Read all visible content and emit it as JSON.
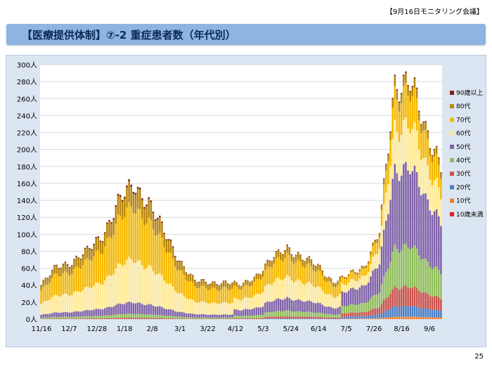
{
  "header": {
    "meeting_tag": "【9月16日モニタリング会議】",
    "title": "【医療提供体制】⑦-2 重症患者数（年代別）",
    "page_number": "25"
  },
  "chart_data": {
    "type": "bar",
    "stacked": true,
    "title": "",
    "xlabel": "",
    "ylabel": "",
    "ylim": [
      0,
      300
    ],
    "y_ticks": [
      "0人",
      "20人",
      "40人",
      "60人",
      "80人",
      "100人",
      "120人",
      "140人",
      "160人",
      "180人",
      "200人",
      "220人",
      "240人",
      "260人",
      "280人",
      "300人"
    ],
    "x_tick_labels": [
      "11/16",
      "12/7",
      "12/28",
      "1/18",
      "2/8",
      "3/1",
      "3/22",
      "4/12",
      "5/3",
      "5/24",
      "6/14",
      "7/5",
      "7/26",
      "8/16",
      "9/6"
    ],
    "grid": true,
    "legend_position": "right",
    "series": [
      {
        "name": "90歳以上",
        "color": "#7b2418"
      },
      {
        "name": "80代",
        "color": "#b8860b"
      },
      {
        "name": "70代",
        "color": "#f5b800"
      },
      {
        "name": "60代",
        "color": "#fde99a"
      },
      {
        "name": "50代",
        "color": "#7f62a8"
      },
      {
        "name": "40代",
        "color": "#8fbd5a"
      },
      {
        "name": "30代",
        "color": "#c9504b"
      },
      {
        "name": "20代",
        "color": "#4a7cc3"
      },
      {
        "name": "10代",
        "color": "#f07c20"
      },
      {
        "name": "10歳未満",
        "color": "#e0201c"
      }
    ],
    "weekly_totals": [
      40,
      62,
      68,
      80,
      100,
      138,
      158,
      140,
      102,
      70,
      45,
      43,
      44,
      40,
      52,
      70,
      84,
      72,
      62,
      44,
      52,
      62,
      105,
      272,
      292,
      215,
      188
    ],
    "weekly_composition": [
      [
        0.015,
        0.15,
        0.39,
        0.32,
        0.085,
        0.03,
        0.01,
        0.0,
        0.0,
        0.0
      ],
      [
        0.015,
        0.15,
        0.39,
        0.32,
        0.085,
        0.03,
        0.01,
        0.0,
        0.0,
        0.0
      ],
      [
        0.015,
        0.15,
        0.39,
        0.32,
        0.085,
        0.03,
        0.01,
        0.0,
        0.0,
        0.0
      ],
      [
        0.015,
        0.15,
        0.39,
        0.32,
        0.085,
        0.03,
        0.01,
        0.0,
        0.0,
        0.0
      ],
      [
        0.015,
        0.15,
        0.39,
        0.32,
        0.085,
        0.03,
        0.01,
        0.0,
        0.0,
        0.0
      ],
      [
        0.015,
        0.15,
        0.39,
        0.32,
        0.085,
        0.03,
        0.01,
        0.0,
        0.0,
        0.0
      ],
      [
        0.015,
        0.15,
        0.39,
        0.32,
        0.085,
        0.03,
        0.01,
        0.0,
        0.0,
        0.0
      ],
      [
        0.015,
        0.15,
        0.39,
        0.32,
        0.085,
        0.03,
        0.01,
        0.0,
        0.0,
        0.0
      ],
      [
        0.015,
        0.15,
        0.39,
        0.32,
        0.085,
        0.03,
        0.01,
        0.0,
        0.0,
        0.0
      ],
      [
        0.015,
        0.15,
        0.39,
        0.32,
        0.085,
        0.03,
        0.01,
        0.0,
        0.0,
        0.0
      ],
      [
        0.015,
        0.15,
        0.39,
        0.32,
        0.085,
        0.03,
        0.01,
        0.0,
        0.0,
        0.0
      ],
      [
        0.015,
        0.15,
        0.39,
        0.32,
        0.085,
        0.03,
        0.01,
        0.0,
        0.0,
        0.0
      ],
      [
        0.015,
        0.15,
        0.39,
        0.32,
        0.085,
        0.03,
        0.01,
        0.0,
        0.0,
        0.0
      ],
      [
        0.01,
        0.11,
        0.32,
        0.3,
        0.17,
        0.07,
        0.02,
        0.0,
        0.0,
        0.0
      ],
      [
        0.01,
        0.11,
        0.32,
        0.3,
        0.17,
        0.07,
        0.02,
        0.0,
        0.0,
        0.0
      ],
      [
        0.01,
        0.1,
        0.3,
        0.3,
        0.18,
        0.08,
        0.03,
        0.01,
        0.0,
        0.0
      ],
      [
        0.01,
        0.1,
        0.3,
        0.3,
        0.18,
        0.08,
        0.03,
        0.01,
        0.0,
        0.0
      ],
      [
        0.01,
        0.1,
        0.3,
        0.3,
        0.18,
        0.08,
        0.03,
        0.01,
        0.0,
        0.0
      ],
      [
        0.01,
        0.1,
        0.3,
        0.3,
        0.18,
        0.08,
        0.03,
        0.01,
        0.0,
        0.0
      ],
      [
        0.01,
        0.1,
        0.3,
        0.3,
        0.18,
        0.08,
        0.03,
        0.01,
        0.0,
        0.0
      ],
      [
        0.005,
        0.04,
        0.14,
        0.18,
        0.33,
        0.17,
        0.08,
        0.045,
        0.01,
        0.0
      ],
      [
        0.005,
        0.04,
        0.14,
        0.18,
        0.33,
        0.17,
        0.08,
        0.045,
        0.01,
        0.0
      ],
      [
        0.005,
        0.04,
        0.14,
        0.18,
        0.33,
        0.17,
        0.08,
        0.045,
        0.01,
        0.0
      ],
      [
        0.005,
        0.04,
        0.14,
        0.18,
        0.33,
        0.17,
        0.08,
        0.045,
        0.01,
        0.0
      ],
      [
        0.005,
        0.04,
        0.14,
        0.18,
        0.33,
        0.17,
        0.08,
        0.045,
        0.01,
        0.0
      ],
      [
        0.005,
        0.04,
        0.14,
        0.18,
        0.33,
        0.17,
        0.08,
        0.045,
        0.01,
        0.0
      ],
      [
        0.005,
        0.04,
        0.14,
        0.18,
        0.33,
        0.17,
        0.08,
        0.045,
        0.01,
        0.0
      ]
    ]
  }
}
